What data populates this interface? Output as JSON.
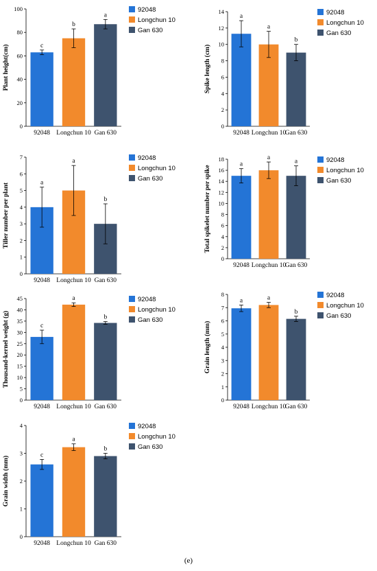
{
  "caption": "(e)",
  "colors": {
    "92048": "#2474d6",
    "Longchun 10": "#f28a2c",
    "Gan 630": "#3e536e"
  },
  "chart_data": [
    {
      "type": "bar",
      "ylabel": "Plant height(cm)",
      "ylim": [
        0,
        100
      ],
      "yticks": [
        0,
        20,
        40,
        60,
        80,
        100
      ],
      "categories": [
        "92048",
        "Longchun 10",
        "Gan 630"
      ],
      "values": [
        63,
        75,
        87
      ],
      "errors": [
        2,
        8,
        4
      ],
      "letters": [
        "c",
        "b",
        "a"
      ],
      "legend": [
        "92048",
        "Longchun 10",
        "Gan 630"
      ]
    },
    {
      "type": "bar",
      "ylabel": "Spike length (cm)",
      "ylim": [
        0,
        14
      ],
      "yticks": [
        0,
        2,
        4,
        6,
        8,
        10,
        12,
        14
      ],
      "categories": [
        "92048",
        "Longchun 10",
        "Gan 630"
      ],
      "values": [
        11.3,
        10.0,
        9.0
      ],
      "errors": [
        1.6,
        1.6,
        1.0
      ],
      "letters": [
        "a",
        "a",
        "b"
      ],
      "legend": [
        "92048",
        "Longchun 10",
        "Gan 630"
      ]
    },
    {
      "type": "bar",
      "ylabel": "Tiller number per plant",
      "ylim": [
        0,
        7
      ],
      "yticks": [
        0,
        1,
        2,
        3,
        4,
        5,
        6,
        7
      ],
      "categories": [
        "92048",
        "Longchun 10",
        "Gan 630"
      ],
      "values": [
        4.0,
        5.0,
        3.0
      ],
      "errors": [
        1.2,
        1.5,
        1.2
      ],
      "letters": [
        "a",
        "a",
        "b"
      ],
      "legend": [
        "92048",
        "Longchun 10",
        "Gan 630"
      ]
    },
    {
      "type": "bar",
      "ylabel": "Total spikelet number per spike",
      "ylim": [
        0,
        18
      ],
      "yticks": [
        0,
        2,
        4,
        6,
        8,
        10,
        12,
        14,
        16,
        18
      ],
      "categories": [
        "92048",
        "Longchun 10",
        "Gan 630"
      ],
      "values": [
        15,
        16,
        15
      ],
      "errors": [
        1.3,
        1.5,
        1.8
      ],
      "letters": [
        "a",
        "a",
        "a"
      ],
      "legend": [
        "92048",
        "Longchun 10",
        "Gan 630"
      ]
    },
    {
      "type": "bar",
      "ylabel": "Thousand-kernel weight (g)",
      "ylim": [
        0,
        45
      ],
      "yticks": [
        0,
        5,
        10,
        15,
        20,
        25,
        30,
        35,
        40,
        45
      ],
      "categories": [
        "92048",
        "Longchun 10",
        "Gan 630"
      ],
      "values": [
        28,
        42.3,
        34.2
      ],
      "errors": [
        3.0,
        0.8,
        0.6
      ],
      "letters": [
        "c",
        "a",
        "b"
      ],
      "legend": [
        "92048",
        "Longchun 10",
        "Gan 630"
      ]
    },
    {
      "type": "bar",
      "ylabel": "Grain length (mm)",
      "ylim": [
        0,
        8
      ],
      "yticks": [
        0,
        1,
        2,
        3,
        4,
        5,
        6,
        7,
        8
      ],
      "categories": [
        "92048",
        "Longchun 10",
        "Gan 630"
      ],
      "values": [
        6.95,
        7.2,
        6.15
      ],
      "errors": [
        0.25,
        0.2,
        0.2
      ],
      "letters": [
        "a",
        "a",
        "b"
      ],
      "legend": [
        "92048",
        "Longchun 10",
        "Gan 630"
      ]
    },
    {
      "type": "bar",
      "ylabel": "Grain width (mm)",
      "ylim": [
        0,
        4
      ],
      "yticks": [
        0,
        1,
        2,
        3,
        4
      ],
      "categories": [
        "92048",
        "Longchun 10",
        "Gan 630"
      ],
      "values": [
        2.6,
        3.22,
        2.9
      ],
      "errors": [
        0.18,
        0.12,
        0.1
      ],
      "letters": [
        "c",
        "a",
        "b"
      ],
      "legend": [
        "92048",
        "Longchun 10",
        "Gan 630"
      ]
    }
  ]
}
